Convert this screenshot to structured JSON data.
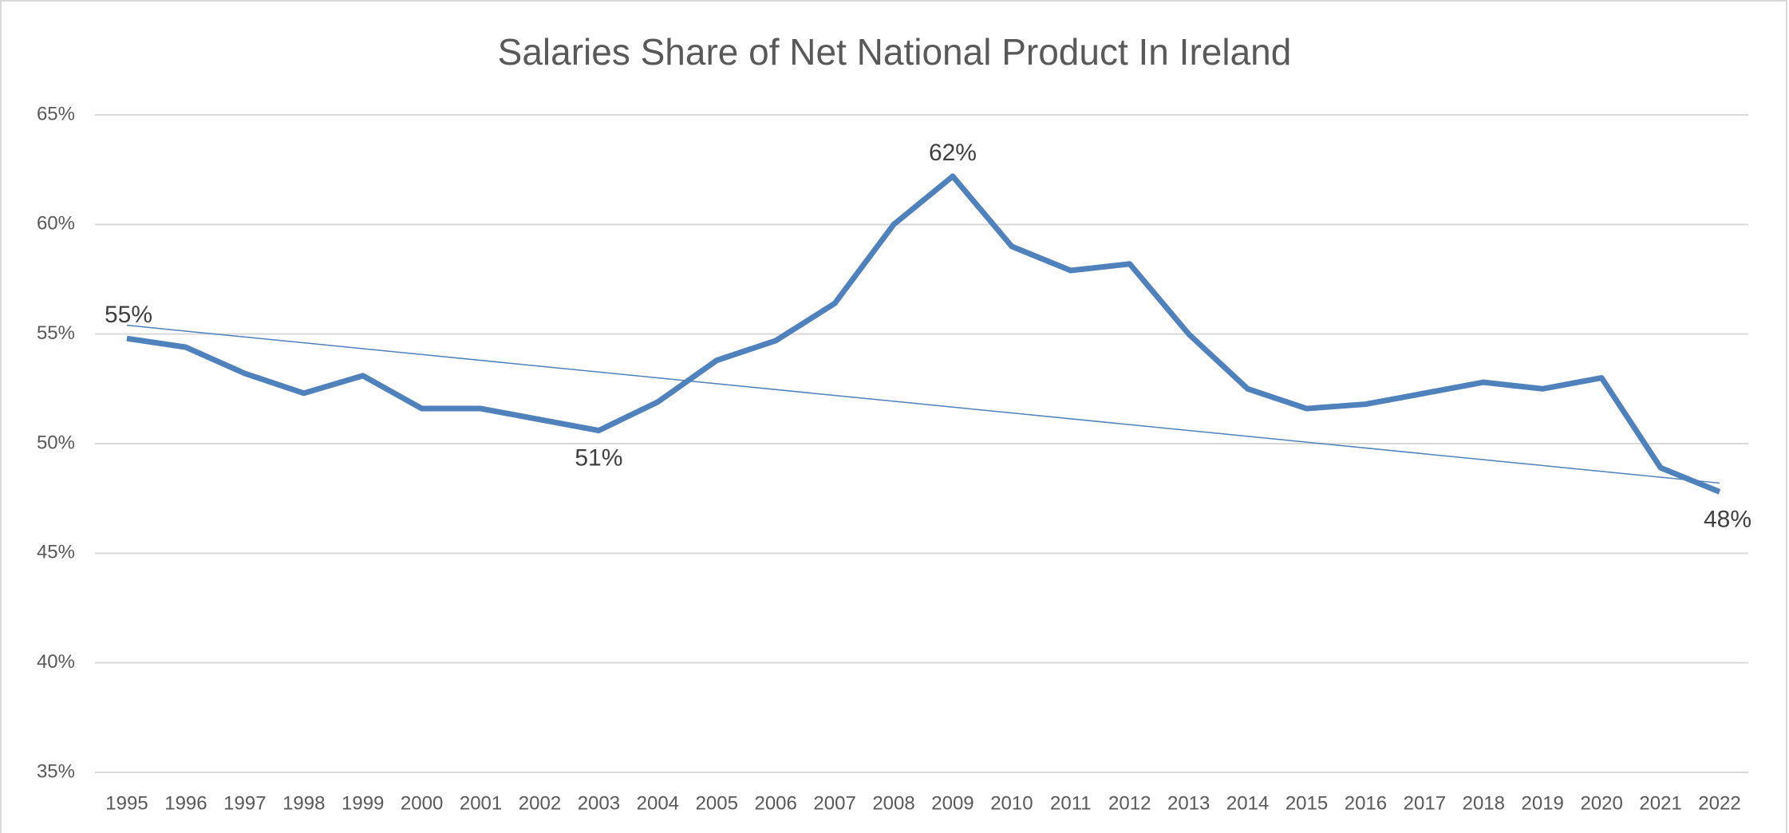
{
  "chart_data": {
    "type": "line",
    "title": "Salaries Share of Net National Product In Ireland",
    "categories": [
      "1995",
      "1996",
      "1997",
      "1998",
      "1999",
      "2000",
      "2001",
      "2002",
      "2003",
      "2004",
      "2005",
      "2006",
      "2007",
      "2008",
      "2009",
      "2010",
      "2011",
      "2012",
      "2013",
      "2014",
      "2015",
      "2016",
      "2017",
      "2018",
      "2019",
      "2020",
      "2021",
      "2022"
    ],
    "series": [
      {
        "color": "#4f81bd",
        "values": [
          54.8,
          54.4,
          53.2,
          52.3,
          53.1,
          51.6,
          51.6,
          51.1,
          50.6,
          51.9,
          53.8,
          54.7,
          56.4,
          60.0,
          62.2,
          59.0,
          57.9,
          58.2,
          55.0,
          52.5,
          51.6,
          51.8,
          52.3,
          52.8,
          52.5,
          53.0,
          48.9,
          47.8
        ],
        "value_labels": [
          "55%",
          null,
          null,
          null,
          null,
          null,
          null,
          null,
          "51%",
          null,
          null,
          null,
          null,
          null,
          "62%",
          null,
          null,
          null,
          null,
          null,
          null,
          null,
          null,
          null,
          null,
          null,
          null,
          "48%"
        ]
      }
    ],
    "trendline": {
      "color": "#4f81bd",
      "values": [
        55.4,
        48.2
      ]
    },
    "ylim": [
      35,
      65
    ],
    "yticks": [
      {
        "value": 35,
        "label": "35%"
      },
      {
        "value": 40,
        "label": "40%"
      },
      {
        "value": 45,
        "label": "45%"
      },
      {
        "value": 50,
        "label": "50%"
      },
      {
        "value": 55,
        "label": "55%"
      },
      {
        "value": 60,
        "label": "60%"
      },
      {
        "value": 65,
        "label": "65%"
      }
    ],
    "grid": true
  }
}
